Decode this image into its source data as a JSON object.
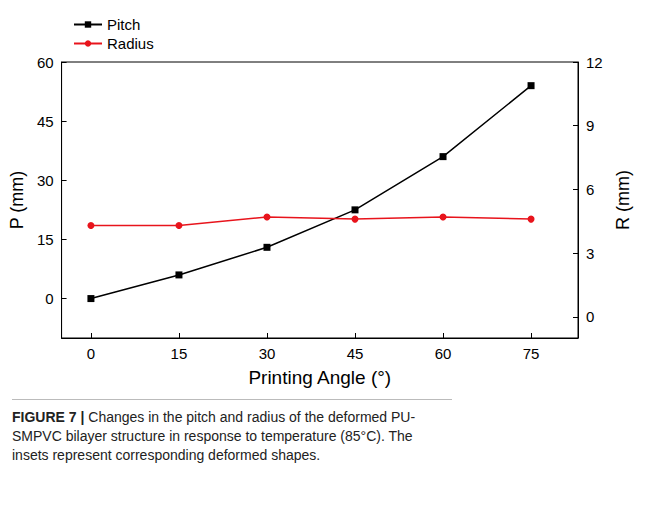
{
  "chart_data": {
    "type": "line",
    "x_label": "Printing Angle (°)",
    "y_label": "P (mm)",
    "y2_label": "R (mm)",
    "x": [
      0,
      15,
      30,
      45,
      60,
      75
    ],
    "series": [
      {
        "name": "Pitch",
        "color": "#000000",
        "marker": "square",
        "values": [
          0,
          6,
          13,
          22.5,
          36,
          54
        ]
      },
      {
        "name": "Radius",
        "color": "#e8141c",
        "marker": "circle",
        "axis": "y2",
        "values": [
          4.3,
          4.3,
          4.7,
          4.6,
          4.7,
          4.6
        ]
      }
    ],
    "xlim": [
      -5,
      83
    ],
    "xticks": [
      0,
      15,
      30,
      45,
      60,
      75
    ],
    "ylim": [
      -10,
      60
    ],
    "yticks": [
      0,
      15,
      30,
      45,
      60
    ],
    "y2lim": [
      -1,
      12
    ],
    "y2ticks": [
      0,
      3,
      6,
      9,
      12
    ],
    "legend": "upper left",
    "grid": false
  },
  "caption_label": "FIGURE 7 |",
  "caption": "Changes in the pitch and radius of the deformed PU-SMPVC bilayer structure in response to temperature (85°C). The insets represent corresponding deformed shapes."
}
